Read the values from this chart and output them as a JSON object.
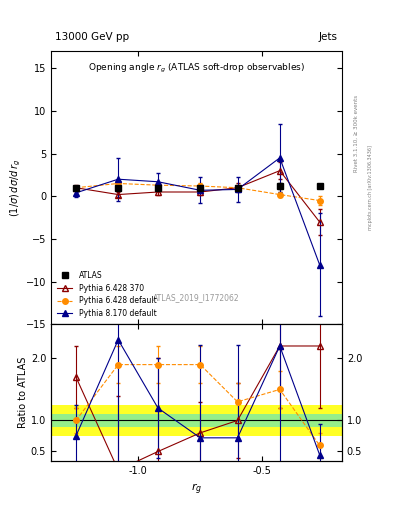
{
  "title_top": "13000 GeV pp",
  "title_right_top": "Jets",
  "plot_title": "Opening angle r_g (ATLAS soft-drop observables)",
  "ylabel_main": "(1/σ) dσ/d r_g",
  "ylabel_ratio": "Ratio to ATLAS",
  "xlabel": "r_g",
  "rivet_label": "Rivet 3.1.10, ≥ 300k events",
  "mcplots_label": "mcplots.cern.ch [arXiv:1306.3436]",
  "atlas_label": "ATLAS_2019_I1772062",
  "main_ylim": [
    -15,
    17
  ],
  "main_yticks": [
    -15,
    -10,
    -5,
    0,
    5,
    10,
    15
  ],
  "ratio_ylim": [
    0.35,
    2.55
  ],
  "ratio_yticks": [
    0.5,
    1.0,
    2.0
  ],
  "xlim": [
    -1.35,
    -0.18
  ],
  "xticks": [
    -1.0,
    -0.5
  ],
  "x_data": [
    -1.25,
    -1.08,
    -0.92,
    -0.75,
    -0.6,
    -0.43,
    -0.27
  ],
  "atlas_y": [
    1.0,
    1.0,
    1.0,
    1.0,
    1.0,
    1.2,
    1.2
  ],
  "atlas_yerr": [
    0.15,
    0.15,
    0.15,
    0.15,
    0.15,
    0.4,
    0.15
  ],
  "pythia6_370_y": [
    1.0,
    0.2,
    0.5,
    0.5,
    1.0,
    3.0,
    -3.0
  ],
  "pythia6_370_yerr": [
    0.3,
    0.3,
    0.3,
    0.3,
    0.5,
    1.0,
    1.5
  ],
  "pythia6_def_y": [
    1.0,
    1.5,
    1.3,
    1.2,
    1.0,
    0.2,
    -0.5
  ],
  "pythia6_def_yerr": [
    0.2,
    0.3,
    0.3,
    0.3,
    0.3,
    0.3,
    0.5
  ],
  "pythia8_y": [
    0.4,
    2.0,
    1.7,
    0.7,
    0.8,
    4.5,
    -8.0
  ],
  "pythia8_yerr": [
    0.5,
    2.5,
    1.0,
    1.5,
    1.5,
    4.0,
    6.0
  ],
  "ratio_pythia6_370": [
    1.7,
    0.2,
    0.5,
    0.8,
    1.0,
    2.2,
    2.2
  ],
  "ratio_pythia6_370_yerr": [
    0.5,
    1.2,
    1.5,
    0.5,
    0.6,
    1.0,
    1.0
  ],
  "ratio_pythia6_def": [
    1.0,
    1.9,
    1.9,
    1.9,
    1.3,
    1.5,
    0.6
  ],
  "ratio_pythia6_def_yerr": [
    0.2,
    0.3,
    0.3,
    0.3,
    0.3,
    0.3,
    0.2
  ],
  "ratio_pythia8": [
    0.75,
    2.3,
    1.2,
    0.72,
    0.72,
    2.2,
    0.45
  ],
  "ratio_pythia8_yerr": [
    0.5,
    2.0,
    0.8,
    1.5,
    1.5,
    2.0,
    0.5
  ],
  "band_x_edges": [
    -1.35,
    -1.17,
    -1.0,
    -0.83,
    -0.67,
    -0.5,
    -0.33,
    -0.18
  ],
  "yellow_lo": 0.75,
  "yellow_hi": 1.25,
  "green_lo": 0.9,
  "green_hi": 1.1,
  "color_atlas": "#000000",
  "color_p6_370": "#8B0000",
  "color_p6_def": "#FF8C00",
  "color_p8": "#00008B",
  "bg_color": "#ffffff"
}
